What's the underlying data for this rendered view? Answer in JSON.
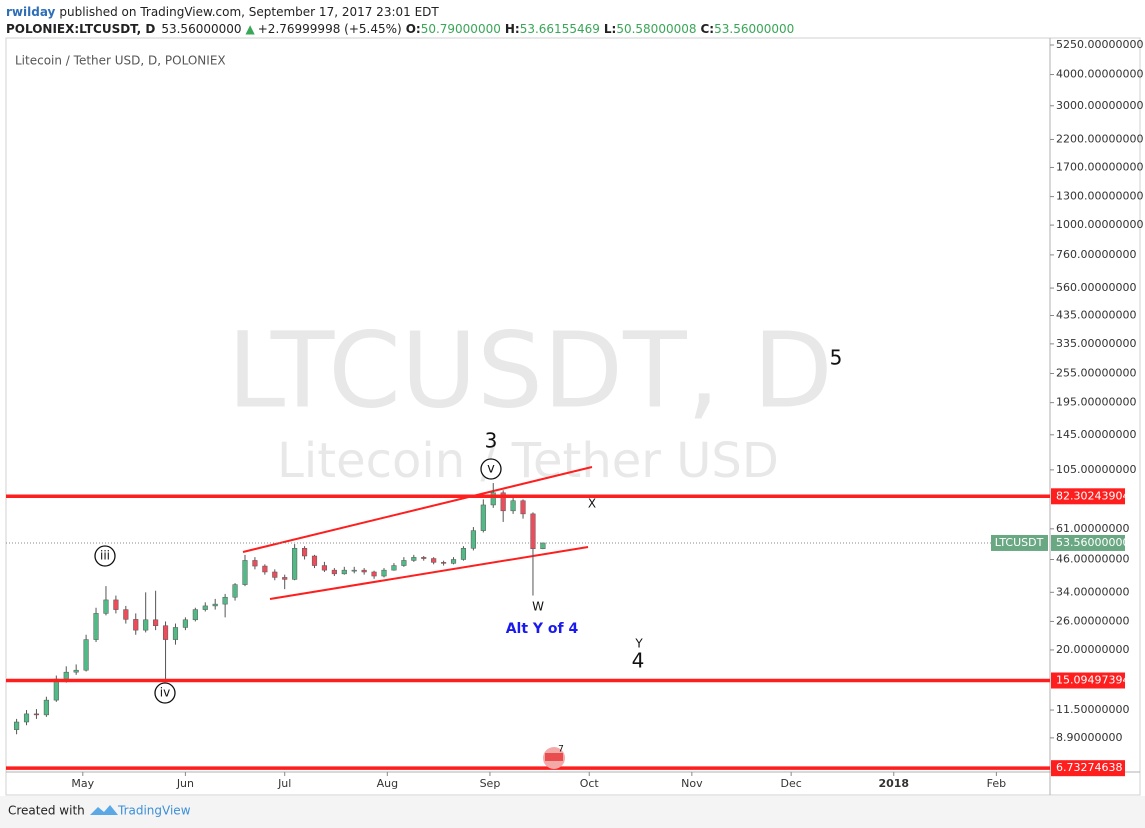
{
  "header": {
    "author": "rwilday",
    "published": "published on TradingView.com, September 17, 2017 23:01 EDT",
    "symbol": "POLONIEX:LTCUSDT, D",
    "last": "53.56000000",
    "arrow": "▲",
    "change": "+2.76999998 (+5.45%)",
    "o_label": "O:",
    "o": "50.79000000",
    "h_label": "H:",
    "h": "53.66155469",
    "l_label": "L:",
    "l": "50.58000008",
    "c_label": "C:",
    "c": "53.56000000"
  },
  "chart_data": {
    "type": "candlestick",
    "legend": "Litecoin / Tether USD, D, POLONIEX",
    "watermark": "LTCUSDT, D",
    "watermark_subtitle": "Litecoin / Tether USD",
    "log_scale": true,
    "up_color": "#53b987",
    "down_color": "#eb4d5c",
    "level_color": "#ff1e1e",
    "x": [
      2,
      5,
      8,
      11,
      14,
      17,
      20,
      23,
      26,
      29,
      32,
      35,
      38,
      41,
      44,
      47,
      50,
      53,
      56,
      59,
      62,
      65,
      68,
      71,
      74,
      77,
      80,
      83,
      86,
      89,
      92,
      95,
      98,
      101,
      104,
      107,
      110,
      113,
      116,
      119,
      122,
      125,
      128,
      131,
      134,
      137,
      140,
      143,
      146,
      149,
      152,
      155,
      158,
      161
    ],
    "open": [
      9.6,
      10.3,
      11.1,
      11.0,
      12.6,
      15.3,
      16.3,
      16.6,
      22,
      28,
      31.7,
      29,
      26.5,
      24,
      26.4,
      25,
      22,
      24.6,
      26.4,
      29,
      30,
      30.5,
      32.5,
      36.5,
      45.6,
      43.3,
      41,
      39,
      38.3,
      51,
      47.5,
      43.5,
      41.7,
      40.3,
      41.7,
      41.7,
      41,
      39.5,
      41.7,
      43.5,
      45.6,
      46.9,
      46.4,
      44.8,
      44.4,
      46,
      51,
      60,
      76,
      85,
      72,
      79,
      70,
      50.79
    ],
    "high": [
      10.6,
      11.5,
      11.6,
      13.0,
      15.8,
      17.2,
      17.5,
      23.0,
      29.5,
      36,
      33,
      30,
      28,
      34,
      34.5,
      26,
      25.5,
      27,
      29.5,
      31,
      32,
      33.5,
      37,
      48,
      47,
      44,
      42,
      40,
      53,
      52,
      48,
      45,
      42.5,
      43,
      43,
      42.5,
      41.5,
      42.5,
      44.5,
      47,
      48,
      47.5,
      47,
      45.5,
      47,
      52,
      62,
      80,
      93,
      87,
      82,
      80,
      71,
      53.66155469
    ],
    "low": [
      9.2,
      10.0,
      10.6,
      10.8,
      12.4,
      14.8,
      15.9,
      16.4,
      21.5,
      27.5,
      28,
      25.5,
      23,
      23.5,
      24,
      15.3,
      21,
      24,
      26,
      28.5,
      29,
      27,
      31.5,
      36,
      42,
      40,
      38,
      35,
      38,
      46,
      42.5,
      41,
      39.5,
      40,
      40.5,
      40,
      38.5,
      39,
      41.5,
      43,
      45,
      45.5,
      44,
      43.5,
      44,
      45.5,
      50,
      59,
      74,
      65,
      70,
      67,
      33,
      50.58000008
    ],
    "close": [
      10.3,
      11.1,
      11.0,
      12.6,
      15.3,
      16.3,
      16.6,
      22,
      28,
      31.7,
      29,
      26.5,
      24,
      26.4,
      25,
      22,
      24.6,
      26.4,
      29,
      30,
      30.5,
      32.5,
      36.5,
      45.6,
      43.3,
      41,
      39,
      38.3,
      51,
      47.5,
      43.5,
      41.7,
      40.3,
      41.7,
      41.7,
      41,
      39.5,
      41.7,
      43.5,
      45.6,
      46.9,
      46.4,
      44.8,
      44.4,
      46,
      51,
      60,
      76,
      85,
      72,
      79,
      70,
      50.79,
      53.56
    ],
    "xlim": [
      -1.2,
      314.2
    ],
    "xticks": [
      {
        "value": 22,
        "label": "May"
      },
      {
        "value": 53,
        "label": "Jun"
      },
      {
        "value": 83,
        "label": "Jul"
      },
      {
        "value": 114,
        "label": "Aug"
      },
      {
        "value": 145,
        "label": "Sep"
      },
      {
        "value": 175,
        "label": "Oct"
      },
      {
        "value": 206,
        "label": "Nov"
      },
      {
        "value": 236,
        "label": "Dec"
      },
      {
        "value": 267,
        "label": "2018"
      },
      {
        "value": 298,
        "label": "Feb"
      }
    ],
    "ylim": [
      6.5,
      5600
    ],
    "yticks": [
      {
        "value": 5250,
        "label": "5250.00000000"
      },
      {
        "value": 4000,
        "label": "4000.00000000"
      },
      {
        "value": 3000,
        "label": "3000.00000000"
      },
      {
        "value": 2200,
        "label": "2200.00000000"
      },
      {
        "value": 1700,
        "label": "1700.00000000"
      },
      {
        "value": 1300,
        "label": "1300.00000000"
      },
      {
        "value": 1000,
        "label": "1000.00000000"
      },
      {
        "value": 760,
        "label": "760.00000000"
      },
      {
        "value": 560,
        "label": "560.00000000"
      },
      {
        "value": 435,
        "label": "435.00000000"
      },
      {
        "value": 335,
        "label": "335.00000000"
      },
      {
        "value": 255,
        "label": "255.00000000"
      },
      {
        "value": 195,
        "label": "195.00000000"
      },
      {
        "value": 145,
        "label": "145.00000000"
      },
      {
        "value": 105,
        "label": "105.00000000"
      },
      {
        "value": 61,
        "label": "61.00000000"
      },
      {
        "value": 46,
        "label": "46.00000000"
      },
      {
        "value": 34,
        "label": "34.00000000"
      },
      {
        "value": 26,
        "label": "26.00000000"
      },
      {
        "value": 20,
        "label": "20.00000000"
      },
      {
        "value": 11.5,
        "label": "11.50000000"
      },
      {
        "value": 8.9,
        "label": "8.90000000"
      }
    ],
    "levels": [
      82.30243904,
      15.09497394,
      6.73274638
    ],
    "current": {
      "name": "LTCUSDT",
      "value": 53.56,
      "label": "53.56000000",
      "color": "#6aa884"
    },
    "annotations": [
      {
        "text": "3"
      },
      {
        "text": "v"
      },
      {
        "text": "iii"
      },
      {
        "text": "iv"
      },
      {
        "text": "W"
      },
      {
        "text": "Alt Y of 4"
      },
      {
        "text": "Y"
      },
      {
        "text": "4"
      },
      {
        "text": "X"
      },
      {
        "text": "5"
      },
      {
        "text": "7"
      }
    ]
  },
  "footer": {
    "created": "Created with",
    "brand": "TradingView"
  }
}
